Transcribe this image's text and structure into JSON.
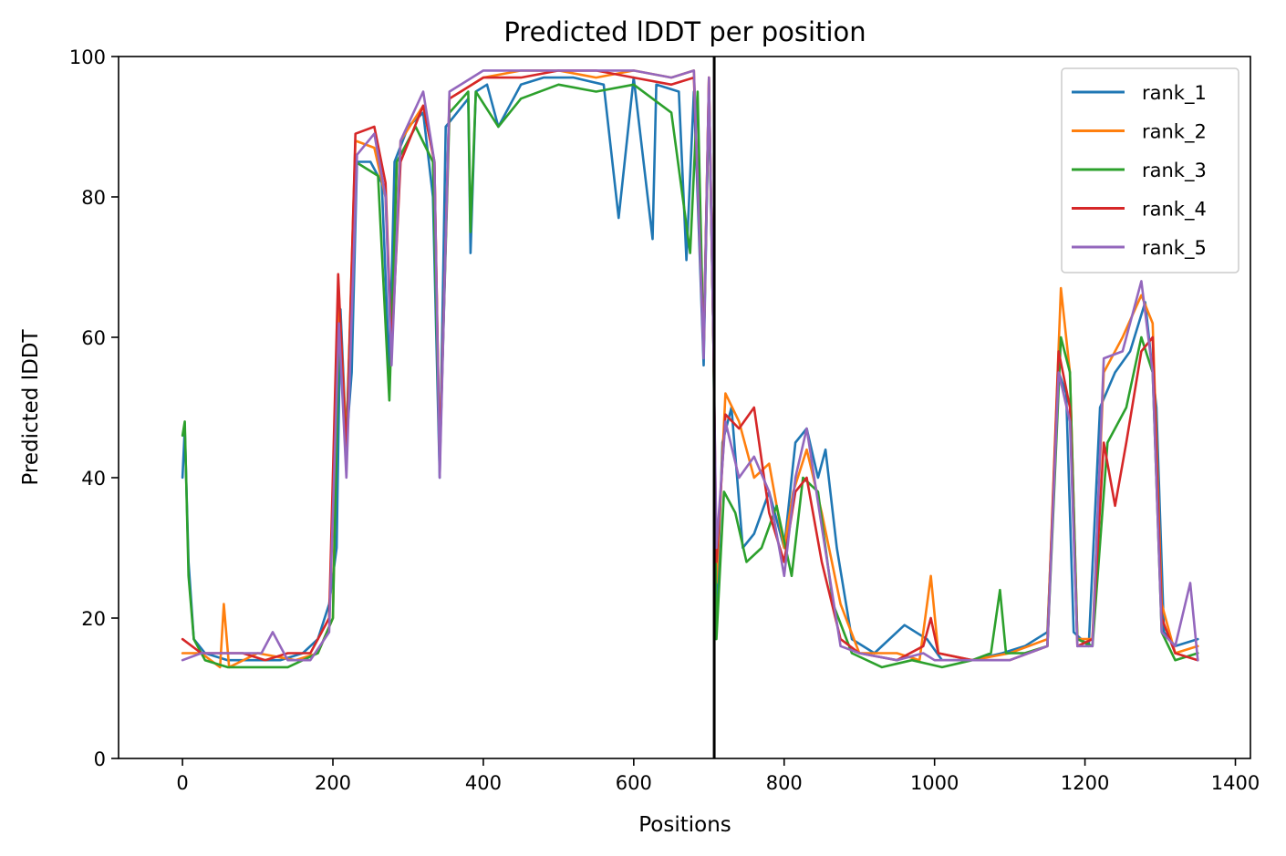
{
  "chart_data": {
    "type": "line",
    "title": "Predicted lDDT per position",
    "xlabel": "Positions",
    "ylabel": "Predicted lDDT",
    "xlim": [
      -85,
      1420
    ],
    "ylim": [
      0,
      100
    ],
    "x_ticks": [
      0,
      200,
      400,
      600,
      800,
      1000,
      1200,
      1400
    ],
    "y_ticks": [
      0,
      20,
      40,
      60,
      80,
      100
    ],
    "grid": false,
    "legend_position": "top-right",
    "divider_x": 707,
    "divider_color": "#000000",
    "series": [
      {
        "name": "rank_1",
        "color": "#1f77b4",
        "points": [
          [
            0,
            40
          ],
          [
            3,
            47
          ],
          [
            8,
            28
          ],
          [
            15,
            17
          ],
          [
            30,
            15
          ],
          [
            60,
            14
          ],
          [
            100,
            14
          ],
          [
            130,
            14
          ],
          [
            160,
            15
          ],
          [
            180,
            17
          ],
          [
            195,
            22
          ],
          [
            205,
            30
          ],
          [
            210,
            64
          ],
          [
            218,
            45
          ],
          [
            225,
            55
          ],
          [
            232,
            85
          ],
          [
            250,
            85
          ],
          [
            265,
            82
          ],
          [
            275,
            55
          ],
          [
            282,
            85
          ],
          [
            300,
            90
          ],
          [
            320,
            92
          ],
          [
            333,
            80
          ],
          [
            342,
            40
          ],
          [
            350,
            90
          ],
          [
            380,
            94
          ],
          [
            383,
            72
          ],
          [
            390,
            95
          ],
          [
            405,
            96
          ],
          [
            420,
            90
          ],
          [
            450,
            96
          ],
          [
            480,
            97
          ],
          [
            520,
            97
          ],
          [
            560,
            96
          ],
          [
            580,
            77
          ],
          [
            600,
            97
          ],
          [
            625,
            74
          ],
          [
            630,
            96
          ],
          [
            660,
            95
          ],
          [
            670,
            71
          ],
          [
            680,
            95
          ],
          [
            693,
            56
          ],
          [
            700,
            95
          ],
          [
            706,
            60
          ],
          [
            710,
            20
          ],
          [
            718,
            45
          ],
          [
            730,
            50
          ],
          [
            745,
            30
          ],
          [
            760,
            32
          ],
          [
            780,
            38
          ],
          [
            800,
            30
          ],
          [
            815,
            45
          ],
          [
            830,
            47
          ],
          [
            845,
            40
          ],
          [
            855,
            44
          ],
          [
            870,
            30
          ],
          [
            890,
            17
          ],
          [
            920,
            15
          ],
          [
            960,
            19
          ],
          [
            990,
            17
          ],
          [
            1010,
            14
          ],
          [
            1050,
            14
          ],
          [
            1090,
            15
          ],
          [
            1120,
            16
          ],
          [
            1150,
            18
          ],
          [
            1165,
            55
          ],
          [
            1175,
            52
          ],
          [
            1185,
            18
          ],
          [
            1205,
            16
          ],
          [
            1220,
            50
          ],
          [
            1240,
            55
          ],
          [
            1260,
            58
          ],
          [
            1280,
            65
          ],
          [
            1295,
            50
          ],
          [
            1305,
            18
          ],
          [
            1320,
            16
          ],
          [
            1350,
            17
          ]
        ]
      },
      {
        "name": "rank_2",
        "color": "#ff7f0e",
        "points": [
          [
            0,
            15
          ],
          [
            25,
            15
          ],
          [
            50,
            13
          ],
          [
            55,
            22
          ],
          [
            62,
            13
          ],
          [
            100,
            15
          ],
          [
            150,
            14
          ],
          [
            180,
            15
          ],
          [
            200,
            20
          ],
          [
            208,
            66
          ],
          [
            218,
            45
          ],
          [
            230,
            88
          ],
          [
            255,
            87
          ],
          [
            270,
            80
          ],
          [
            278,
            58
          ],
          [
            290,
            88
          ],
          [
            320,
            93
          ],
          [
            335,
            85
          ],
          [
            342,
            42
          ],
          [
            355,
            94
          ],
          [
            400,
            97
          ],
          [
            450,
            98
          ],
          [
            500,
            98
          ],
          [
            550,
            97
          ],
          [
            600,
            98
          ],
          [
            650,
            97
          ],
          [
            680,
            98
          ],
          [
            693,
            58
          ],
          [
            700,
            97
          ],
          [
            706,
            60
          ],
          [
            710,
            25
          ],
          [
            722,
            52
          ],
          [
            740,
            48
          ],
          [
            760,
            40
          ],
          [
            780,
            42
          ],
          [
            800,
            30
          ],
          [
            812,
            38
          ],
          [
            830,
            44
          ],
          [
            850,
            35
          ],
          [
            875,
            22
          ],
          [
            900,
            15
          ],
          [
            950,
            15
          ],
          [
            980,
            14
          ],
          [
            995,
            26
          ],
          [
            1005,
            15
          ],
          [
            1050,
            14
          ],
          [
            1100,
            15
          ],
          [
            1150,
            17
          ],
          [
            1168,
            67
          ],
          [
            1180,
            55
          ],
          [
            1190,
            17
          ],
          [
            1210,
            17
          ],
          [
            1225,
            55
          ],
          [
            1250,
            60
          ],
          [
            1275,
            66
          ],
          [
            1290,
            62
          ],
          [
            1302,
            22
          ],
          [
            1320,
            15
          ],
          [
            1350,
            16
          ]
        ]
      },
      {
        "name": "rank_3",
        "color": "#2ca02c",
        "points": [
          [
            0,
            46
          ],
          [
            3,
            48
          ],
          [
            8,
            26
          ],
          [
            15,
            17
          ],
          [
            30,
            14
          ],
          [
            60,
            13
          ],
          [
            100,
            13
          ],
          [
            140,
            13
          ],
          [
            180,
            15
          ],
          [
            200,
            20
          ],
          [
            208,
            60
          ],
          [
            218,
            45
          ],
          [
            230,
            85
          ],
          [
            260,
            83
          ],
          [
            275,
            51
          ],
          [
            285,
            85
          ],
          [
            310,
            90
          ],
          [
            333,
            85
          ],
          [
            342,
            42
          ],
          [
            355,
            92
          ],
          [
            380,
            95
          ],
          [
            383,
            75
          ],
          [
            390,
            95
          ],
          [
            420,
            90
          ],
          [
            450,
            94
          ],
          [
            500,
            96
          ],
          [
            550,
            95
          ],
          [
            600,
            96
          ],
          [
            650,
            92
          ],
          [
            675,
            72
          ],
          [
            685,
            95
          ],
          [
            693,
            58
          ],
          [
            700,
            95
          ],
          [
            706,
            60
          ],
          [
            710,
            17
          ],
          [
            720,
            38
          ],
          [
            735,
            35
          ],
          [
            750,
            28
          ],
          [
            770,
            30
          ],
          [
            790,
            36
          ],
          [
            810,
            26
          ],
          [
            825,
            40
          ],
          [
            845,
            38
          ],
          [
            865,
            22
          ],
          [
            890,
            15
          ],
          [
            930,
            13
          ],
          [
            970,
            14
          ],
          [
            1010,
            13
          ],
          [
            1050,
            14
          ],
          [
            1075,
            15
          ],
          [
            1087,
            24
          ],
          [
            1095,
            15
          ],
          [
            1120,
            15
          ],
          [
            1150,
            16
          ],
          [
            1168,
            60
          ],
          [
            1180,
            55
          ],
          [
            1190,
            17
          ],
          [
            1210,
            16
          ],
          [
            1230,
            45
          ],
          [
            1255,
            50
          ],
          [
            1275,
            60
          ],
          [
            1290,
            55
          ],
          [
            1302,
            18
          ],
          [
            1320,
            14
          ],
          [
            1350,
            15
          ]
        ]
      },
      {
        "name": "rank_4",
        "color": "#d62728",
        "points": [
          [
            0,
            17
          ],
          [
            25,
            15
          ],
          [
            50,
            15
          ],
          [
            80,
            15
          ],
          [
            110,
            14
          ],
          [
            140,
            15
          ],
          [
            170,
            15
          ],
          [
            195,
            20
          ],
          [
            207,
            69
          ],
          [
            218,
            43
          ],
          [
            230,
            89
          ],
          [
            255,
            90
          ],
          [
            270,
            82
          ],
          [
            278,
            58
          ],
          [
            290,
            85
          ],
          [
            320,
            93
          ],
          [
            335,
            85
          ],
          [
            342,
            42
          ],
          [
            355,
            94
          ],
          [
            400,
            97
          ],
          [
            450,
            97
          ],
          [
            500,
            98
          ],
          [
            550,
            98
          ],
          [
            600,
            97
          ],
          [
            650,
            96
          ],
          [
            680,
            97
          ],
          [
            693,
            58
          ],
          [
            700,
            97
          ],
          [
            706,
            60
          ],
          [
            710,
            28
          ],
          [
            722,
            49
          ],
          [
            740,
            47
          ],
          [
            760,
            50
          ],
          [
            780,
            35
          ],
          [
            800,
            28
          ],
          [
            815,
            38
          ],
          [
            830,
            40
          ],
          [
            850,
            28
          ],
          [
            875,
            17
          ],
          [
            900,
            15
          ],
          [
            950,
            14
          ],
          [
            985,
            16
          ],
          [
            995,
            20
          ],
          [
            1005,
            15
          ],
          [
            1050,
            14
          ],
          [
            1100,
            14
          ],
          [
            1150,
            16
          ],
          [
            1165,
            58
          ],
          [
            1180,
            50
          ],
          [
            1190,
            16
          ],
          [
            1210,
            17
          ],
          [
            1225,
            45
          ],
          [
            1240,
            36
          ],
          [
            1255,
            45
          ],
          [
            1275,
            58
          ],
          [
            1290,
            60
          ],
          [
            1302,
            20
          ],
          [
            1320,
            15
          ],
          [
            1350,
            14
          ]
        ]
      },
      {
        "name": "rank_5",
        "color": "#9467bd",
        "points": [
          [
            0,
            14
          ],
          [
            25,
            15
          ],
          [
            50,
            15
          ],
          [
            80,
            15
          ],
          [
            105,
            15
          ],
          [
            120,
            18
          ],
          [
            140,
            14
          ],
          [
            170,
            14
          ],
          [
            195,
            18
          ],
          [
            208,
            62
          ],
          [
            218,
            40
          ],
          [
            232,
            86
          ],
          [
            255,
            89
          ],
          [
            270,
            80
          ],
          [
            278,
            56
          ],
          [
            290,
            88
          ],
          [
            320,
            95
          ],
          [
            335,
            85
          ],
          [
            342,
            40
          ],
          [
            355,
            95
          ],
          [
            400,
            98
          ],
          [
            450,
            98
          ],
          [
            500,
            98
          ],
          [
            550,
            98
          ],
          [
            600,
            98
          ],
          [
            650,
            97
          ],
          [
            680,
            98
          ],
          [
            693,
            57
          ],
          [
            700,
            97
          ],
          [
            706,
            60
          ],
          [
            710,
            30
          ],
          [
            722,
            48
          ],
          [
            740,
            40
          ],
          [
            760,
            43
          ],
          [
            780,
            38
          ],
          [
            800,
            26
          ],
          [
            815,
            40
          ],
          [
            830,
            47
          ],
          [
            850,
            33
          ],
          [
            875,
            16
          ],
          [
            900,
            15
          ],
          [
            950,
            14
          ],
          [
            985,
            15
          ],
          [
            1000,
            14
          ],
          [
            1050,
            14
          ],
          [
            1100,
            14
          ],
          [
            1150,
            16
          ],
          [
            1165,
            55
          ],
          [
            1180,
            48
          ],
          [
            1190,
            16
          ],
          [
            1210,
            16
          ],
          [
            1225,
            57
          ],
          [
            1250,
            58
          ],
          [
            1275,
            68
          ],
          [
            1290,
            55
          ],
          [
            1302,
            18
          ],
          [
            1320,
            16
          ],
          [
            1340,
            25
          ],
          [
            1350,
            14
          ]
        ]
      }
    ]
  }
}
